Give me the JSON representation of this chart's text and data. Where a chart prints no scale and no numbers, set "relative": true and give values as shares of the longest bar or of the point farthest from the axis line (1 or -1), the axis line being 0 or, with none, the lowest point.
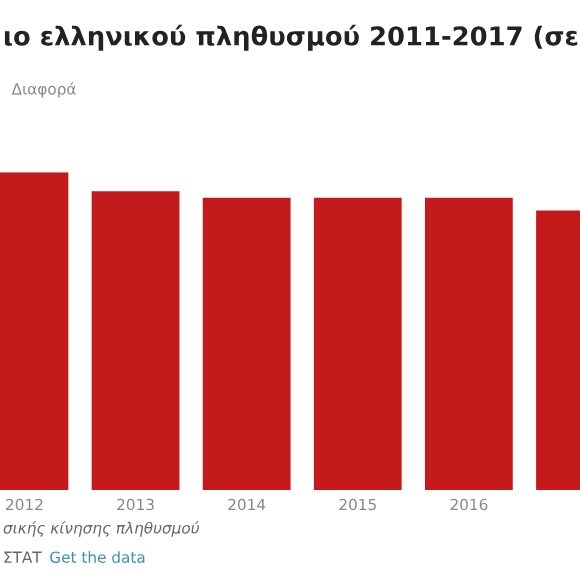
{
  "chart_data": {
    "type": "bar",
    "title": "ιο ελληνικού πληθυσμού 2011-2017 (σε",
    "categories": [
      "2012",
      "2013",
      "2014",
      "2015",
      "2016",
      null
    ],
    "series": [
      {
        "name": "Διαφορά",
        "color": "#c41a1c",
        "values": [
          1,
          0.94,
          0.92,
          0.92,
          0.92,
          0.88
        ]
      }
    ],
    "relative": true,
    "legend": "top left",
    "annotations": [
      "σικής κίνησης πληθυσμού",
      "ΣΤΑΤ",
      "Get the data"
    ]
  }
}
